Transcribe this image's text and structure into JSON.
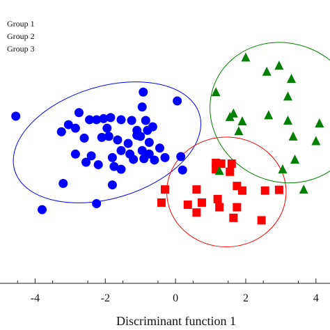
{
  "chart_data": {
    "type": "scatter",
    "xlabel": "Discriminant function 1",
    "ylabel": "",
    "xlim": [
      -5,
      4.4
    ],
    "ylim": [
      -3.2,
      4.8
    ],
    "xticks": [
      -4,
      -2,
      0,
      2,
      4
    ],
    "xtick_labels": [
      "-4",
      "-2",
      "0",
      "2",
      "4"
    ],
    "grid": false,
    "legend_position": "top-left",
    "series": [
      {
        "name": "Group 1",
        "color": "#0000ff",
        "marker": "circle",
        "points": [
          [
            -4.55,
            1.52
          ],
          [
            -3.25,
            1.08
          ],
          [
            -3.05,
            1.28
          ],
          [
            -2.85,
            1.18
          ],
          [
            -2.75,
            1.62
          ],
          [
            -2.45,
            1.42
          ],
          [
            -2.25,
            1.42
          ],
          [
            -2.05,
            1.45
          ],
          [
            -1.85,
            1.48
          ],
          [
            -1.55,
            1.42
          ],
          [
            -1.25,
            1.4
          ],
          [
            -0.85,
            1.4
          ],
          [
            -1.1,
            1.12
          ],
          [
            -0.65,
            1.22
          ],
          [
            -1.95,
            1.18
          ],
          [
            -2.6,
            0.9
          ],
          [
            -2.1,
            0.92
          ],
          [
            -1.9,
            0.95
          ],
          [
            -1.65,
            0.85
          ],
          [
            -1.35,
            0.75
          ],
          [
            -1.0,
            0.95
          ],
          [
            -0.75,
            0.78
          ],
          [
            -0.45,
            0.62
          ],
          [
            -1.55,
            0.55
          ],
          [
            -1.3,
            0.45
          ],
          [
            -0.95,
            0.55
          ],
          [
            -0.75,
            0.45
          ],
          [
            -0.3,
            0.35
          ],
          [
            -2.85,
            0.45
          ],
          [
            -2.4,
            0.4
          ],
          [
            -1.8,
            0.35
          ],
          [
            -1.2,
            0.3
          ],
          [
            -0.9,
            0.32
          ],
          [
            -0.6,
            0.28
          ],
          [
            -2.55,
            0.22
          ],
          [
            -2.2,
            0.15
          ],
          [
            -1.75,
            0.1
          ],
          [
            -1.55,
            0.02
          ],
          [
            -0.95,
            1.78
          ],
          [
            0.05,
            1.95
          ],
          [
            -0.92,
            2.2
          ],
          [
            0.15,
            0.38
          ],
          [
            0.2,
            0.0
          ],
          [
            -3.2,
            -0.38
          ],
          [
            -1.8,
            -0.42
          ],
          [
            -2.25,
            -0.95
          ],
          [
            -3.8,
            -1.12
          ],
          [
            -1.1,
            0.98
          ],
          [
            -0.8,
            1.12
          ]
        ]
      },
      {
        "name": "Group 2",
        "color": "#ff0000",
        "marker": "square",
        "points": [
          [
            1.15,
            0.2
          ],
          [
            1.3,
            0.18
          ],
          [
            1.6,
            0.18
          ],
          [
            1.15,
            0.02
          ],
          [
            1.55,
            -0.05
          ],
          [
            -0.3,
            -0.55
          ],
          [
            0.6,
            -0.55
          ],
          [
            1.75,
            -0.45
          ],
          [
            1.9,
            -0.58
          ],
          [
            2.55,
            -0.58
          ],
          [
            2.95,
            -0.56
          ],
          [
            1.2,
            -0.82
          ],
          [
            -0.4,
            -0.92
          ],
          [
            0.35,
            -0.98
          ],
          [
            0.75,
            -0.92
          ],
          [
            1.25,
            -1.05
          ],
          [
            1.75,
            -1.05
          ],
          [
            0.6,
            -1.2
          ],
          [
            1.65,
            -1.35
          ],
          [
            2.45,
            -1.42
          ]
        ]
      },
      {
        "name": "Group 3",
        "color": "#008000",
        "marker": "triangle",
        "points": [
          [
            2.0,
            3.18
          ],
          [
            2.95,
            2.95
          ],
          [
            2.6,
            2.78
          ],
          [
            3.3,
            2.58
          ],
          [
            1.15,
            2.2
          ],
          [
            3.2,
            2.08
          ],
          [
            1.65,
            1.6
          ],
          [
            2.65,
            1.55
          ],
          [
            1.55,
            1.5
          ],
          [
            1.9,
            1.38
          ],
          [
            3.2,
            1.4
          ],
          [
            4.1,
            1.32
          ],
          [
            1.8,
            1.1
          ],
          [
            3.35,
            0.95
          ],
          [
            4.0,
            0.82
          ],
          [
            3.4,
            0.3
          ],
          [
            3.05,
            0.02
          ],
          [
            3.65,
            -0.55
          ],
          [
            1.25,
            -0.02
          ]
        ]
      }
    ],
    "ellipses": [
      {
        "group": "Group 1",
        "color": "#0000ff",
        "cx": -1.95,
        "cy": 0.78,
        "rx": 2.75,
        "ry": 1.58,
        "rotation_deg": 17
      },
      {
        "group": "Group 2",
        "color": "#ff0000",
        "cx": 1.45,
        "cy": -0.62,
        "rx": 1.7,
        "ry": 1.55,
        "rotation_deg": 0
      },
      {
        "group": "Group 3",
        "color": "#008000",
        "cx": 3.1,
        "cy": 1.62,
        "rx": 2.15,
        "ry": 1.95,
        "rotation_deg": -25
      }
    ]
  }
}
